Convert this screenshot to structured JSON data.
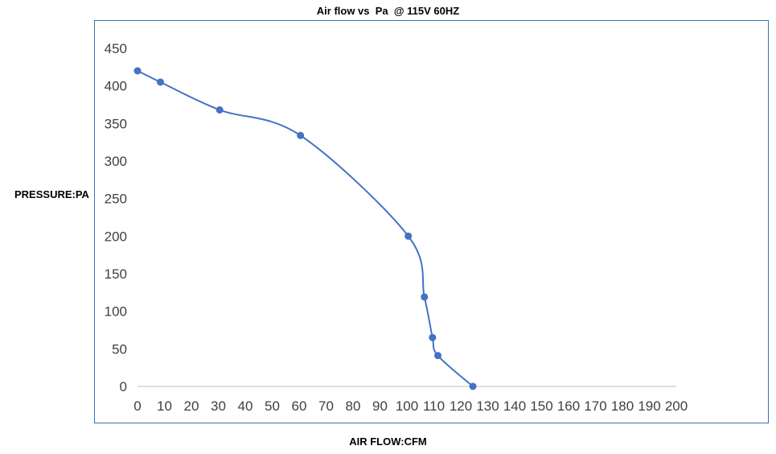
{
  "chart_data": {
    "type": "line",
    "title": "Air flow vs  Pa  @ 115V 60HZ",
    "xlabel": "AIR FLOW:CFM",
    "ylabel": "PRESSURE:PA",
    "xlim": [
      0,
      200
    ],
    "ylim": [
      0,
      450
    ],
    "xticks": [
      0,
      10,
      20,
      30,
      40,
      50,
      60,
      70,
      80,
      90,
      100,
      110,
      120,
      130,
      140,
      150,
      160,
      170,
      180,
      190,
      200
    ],
    "yticks": [
      0,
      50,
      100,
      150,
      200,
      250,
      300,
      350,
      400,
      450
    ],
    "grid": false,
    "series": [
      {
        "color": "#4472c4",
        "x": [
          0,
          8.5,
          30.5,
          60.5,
          100.5,
          106.5,
          109.5,
          111.5,
          124.5
        ],
        "y": [
          420,
          405,
          368,
          334,
          200,
          119,
          65,
          41,
          0
        ]
      }
    ]
  }
}
